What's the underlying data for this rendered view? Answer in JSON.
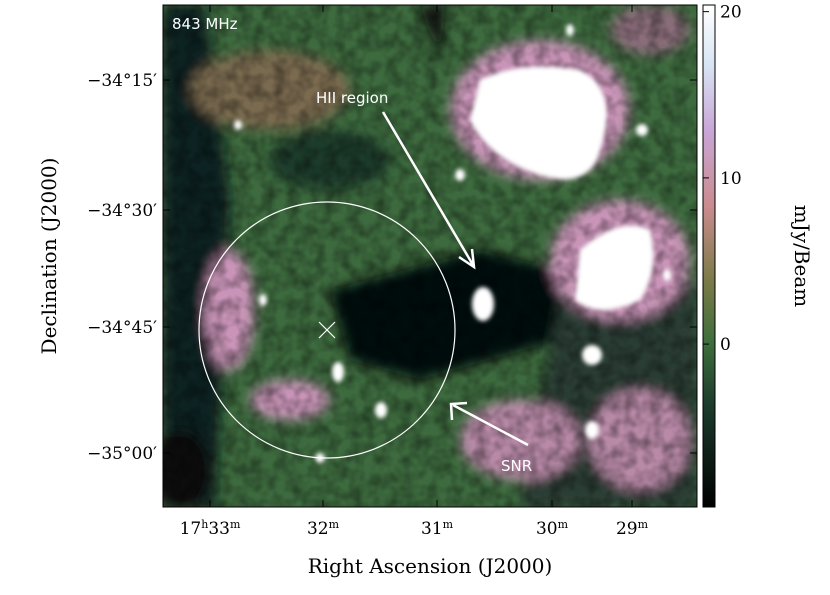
{
  "figure": {
    "frequency": "843 MHz",
    "xlabel": "Right Ascension (J2000)",
    "ylabel": "Declination (J2000)",
    "colorbar_label": "mJy/Beam",
    "colorbar": {
      "lim": [
        -9.8,
        20.4
      ],
      "ticks": [
        0,
        10,
        20
      ]
    },
    "xticks": [
      [
        "17",
        "h",
        "33",
        "m"
      ],
      [
        "32",
        "m"
      ],
      [
        "31",
        "m"
      ],
      [
        "30",
        "m"
      ],
      [
        "29",
        "m"
      ]
    ],
    "yticks": [
      "−34°15′",
      "−34°30′",
      "−34°45′",
      "−35°00′"
    ],
    "annotations": [
      "HII region",
      "SNR"
    ]
  }
}
